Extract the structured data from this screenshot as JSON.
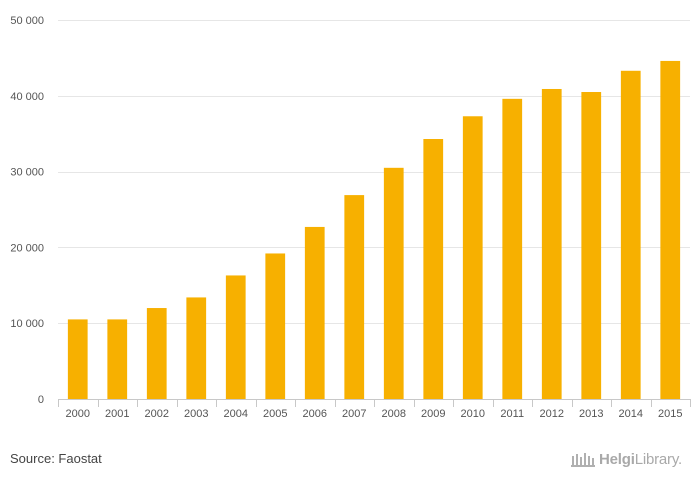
{
  "chart_data": {
    "type": "bar",
    "categories": [
      "2000",
      "2001",
      "2002",
      "2003",
      "2004",
      "2005",
      "2006",
      "2007",
      "2008",
      "2009",
      "2010",
      "2011",
      "2012",
      "2013",
      "2014",
      "2015"
    ],
    "values": [
      10500,
      10500,
      12000,
      13400,
      16300,
      19200,
      22700,
      26900,
      30500,
      34300,
      37300,
      39600,
      40900,
      40500,
      43300,
      44600
    ],
    "ylim": [
      0,
      50000
    ],
    "yticks": [
      0,
      10000,
      20000,
      30000,
      40000,
      50000
    ],
    "ytick_labels": [
      "0",
      "10 000",
      "20 000",
      "30 000",
      "40 000",
      "50 000"
    ],
    "bar_color": "#f7b000",
    "grid": true,
    "title": "",
    "xlabel": "",
    "ylabel": ""
  },
  "footer": {
    "source": "Source: Faostat",
    "logo_bold": "Helgi",
    "logo_rest": "Library."
  }
}
